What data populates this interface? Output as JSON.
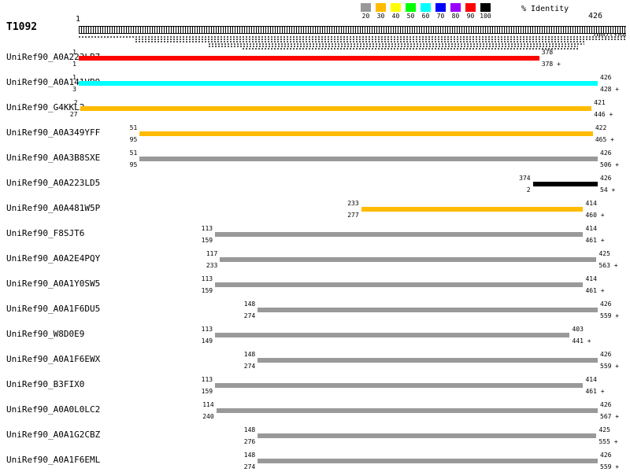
{
  "header": {
    "query_id": "T1092",
    "query_start_label": "1",
    "query_end_label": "426",
    "per_line_label": "100/line"
  },
  "legend": {
    "title": "% Identity",
    "buckets": [
      {
        "label": "20",
        "color": "#999999"
      },
      {
        "label": "30",
        "color": "#ffbb00"
      },
      {
        "label": "40",
        "color": "#ffff00"
      },
      {
        "label": "50",
        "color": "#00ff00"
      },
      {
        "label": "60",
        "color": "#00ffff"
      },
      {
        "label": "70",
        "color": "#0000ff"
      },
      {
        "label": "80",
        "color": "#9900ff"
      },
      {
        "label": "90",
        "color": "#ff0000"
      },
      {
        "label": "100",
        "color": "#000000"
      }
    ]
  },
  "overview": {
    "lines": [
      {
        "x1": 100,
        "x2": 795,
        "y": 46
      },
      {
        "x1": 172,
        "x2": 795,
        "y": 49
      },
      {
        "x1": 172,
        "x2": 742,
        "y": 52
      },
      {
        "x1": 265,
        "x2": 742,
        "y": 55
      },
      {
        "x1": 265,
        "x2": 734,
        "y": 58
      },
      {
        "x1": 308,
        "x2": 734,
        "y": 61
      }
    ]
  },
  "chart_data": {
    "type": "bar",
    "orientation": "horizontal",
    "query": "T1092",
    "x_range": [
      1,
      426
    ],
    "identity_buckets": [
      "20",
      "30",
      "40",
      "50",
      "60",
      "70",
      "80",
      "90",
      "100"
    ],
    "hits": [
      {
        "name": "UniRef90_A0A223LB7",
        "identity": "90",
        "query_start": 1,
        "subject_start": 1,
        "query_end": 378,
        "subject_end": 378,
        "strand": "+"
      },
      {
        "name": "UniRef90_A0A141VB9",
        "identity": "60",
        "query_start": 1,
        "subject_start": 3,
        "query_end": 426,
        "subject_end": 428,
        "strand": "+"
      },
      {
        "name": "UniRef90_G4KKL2",
        "identity": "30",
        "query_start": 2,
        "subject_start": 27,
        "query_end": 421,
        "subject_end": 446,
        "strand": "+"
      },
      {
        "name": "UniRef90_A0A349YFF",
        "identity": "30",
        "query_start": 51,
        "subject_start": 95,
        "query_end": 422,
        "subject_end": 465,
        "strand": "+"
      },
      {
        "name": "UniRef90_A0A3B8SXE",
        "identity": "20",
        "query_start": 51,
        "subject_start": 95,
        "query_end": 426,
        "subject_end": 506,
        "strand": "+"
      },
      {
        "name": "UniRef90_A0A223LD5",
        "identity": "100",
        "query_start": 374,
        "subject_start": 2,
        "query_end": 426,
        "subject_end": 54,
        "strand": "+"
      },
      {
        "name": "UniRef90_A0A481W5P",
        "identity": "30",
        "query_start": 233,
        "subject_start": 277,
        "query_end": 414,
        "subject_end": 460,
        "strand": "+"
      },
      {
        "name": "UniRef90_F8SJT6",
        "identity": "20",
        "query_start": 113,
        "subject_start": 159,
        "query_end": 414,
        "subject_end": 461,
        "strand": "+"
      },
      {
        "name": "UniRef90_A0A2E4PQY",
        "identity": "20",
        "query_start": 117,
        "subject_start": 233,
        "query_end": 425,
        "subject_end": 563,
        "strand": "+"
      },
      {
        "name": "UniRef90_A0A1Y0SW5",
        "identity": "20",
        "query_start": 113,
        "subject_start": 159,
        "query_end": 414,
        "subject_end": 461,
        "strand": "+"
      },
      {
        "name": "UniRef90_A0A1F6DU5",
        "identity": "20",
        "query_start": 148,
        "subject_start": 274,
        "query_end": 426,
        "subject_end": 559,
        "strand": "+"
      },
      {
        "name": "UniRef90_W8D0E9",
        "identity": "20",
        "query_start": 113,
        "subject_start": 149,
        "query_end": 403,
        "subject_end": 441,
        "strand": "+"
      },
      {
        "name": "UniRef90_A0A1F6EWX",
        "identity": "20",
        "query_start": 148,
        "subject_start": 274,
        "query_end": 426,
        "subject_end": 559,
        "strand": "+"
      },
      {
        "name": "UniRef90_B3FIX0",
        "identity": "20",
        "query_start": 113,
        "subject_start": 159,
        "query_end": 414,
        "subject_end": 461,
        "strand": "+"
      },
      {
        "name": "UniRef90_A0A0L0LC2",
        "identity": "20",
        "query_start": 114,
        "subject_start": 240,
        "query_end": 426,
        "subject_end": 567,
        "strand": "+"
      },
      {
        "name": "UniRef90_A0A1G2CBZ",
        "identity": "20",
        "query_start": 148,
        "subject_start": 276,
        "query_end": 425,
        "subject_end": 555,
        "strand": "+"
      },
      {
        "name": "UniRef90_A0A1F6EML",
        "identity": "20",
        "query_start": 148,
        "subject_start": 274,
        "query_end": 426,
        "subject_end": 559,
        "strand": "+"
      }
    ]
  }
}
